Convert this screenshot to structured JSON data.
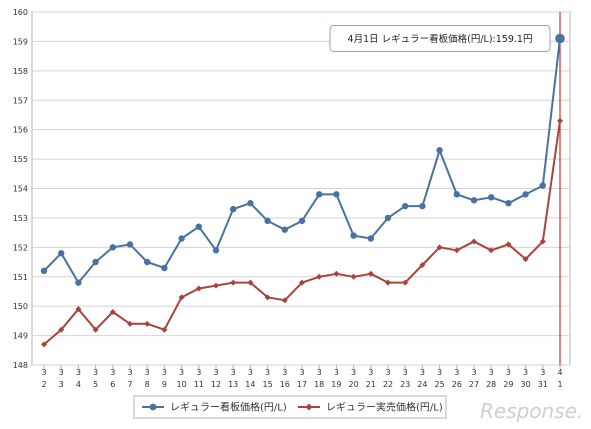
{
  "chart_data": {
    "type": "line",
    "title": "",
    "xlabel": "",
    "ylabel": "",
    "ylim": [
      148,
      160
    ],
    "yticks": [
      148,
      149,
      150,
      151,
      152,
      153,
      154,
      155,
      156,
      157,
      158,
      159,
      160
    ],
    "grid": true,
    "categories": [
      {
        "month": "3",
        "day": "2"
      },
      {
        "month": "3",
        "day": "3"
      },
      {
        "month": "3",
        "day": "4"
      },
      {
        "month": "3",
        "day": "5"
      },
      {
        "month": "3",
        "day": "6"
      },
      {
        "month": "3",
        "day": "7"
      },
      {
        "month": "3",
        "day": "8"
      },
      {
        "month": "3",
        "day": "9"
      },
      {
        "month": "3",
        "day": "10"
      },
      {
        "month": "3",
        "day": "11"
      },
      {
        "month": "3",
        "day": "12"
      },
      {
        "month": "3",
        "day": "13"
      },
      {
        "month": "3",
        "day": "14"
      },
      {
        "month": "3",
        "day": "15"
      },
      {
        "month": "3",
        "day": "16"
      },
      {
        "month": "3",
        "day": "17"
      },
      {
        "month": "3",
        "day": "18"
      },
      {
        "month": "3",
        "day": "19"
      },
      {
        "month": "3",
        "day": "20"
      },
      {
        "month": "3",
        "day": "21"
      },
      {
        "month": "3",
        "day": "22"
      },
      {
        "month": "3",
        "day": "23"
      },
      {
        "month": "3",
        "day": "24"
      },
      {
        "month": "3",
        "day": "25"
      },
      {
        "month": "3",
        "day": "26"
      },
      {
        "month": "3",
        "day": "27"
      },
      {
        "month": "3",
        "day": "28"
      },
      {
        "month": "3",
        "day": "29"
      },
      {
        "month": "3",
        "day": "30"
      },
      {
        "month": "3",
        "day": "31"
      },
      {
        "month": "4",
        "day": "1"
      }
    ],
    "series": [
      {
        "name": "レギュラー看板価格(円/L)",
        "color": "#4a72a0",
        "marker": "circle",
        "values": [
          151.2,
          151.8,
          150.8,
          151.5,
          152.0,
          152.1,
          151.5,
          151.3,
          152.3,
          152.7,
          151.9,
          153.3,
          153.5,
          152.9,
          152.6,
          152.9,
          153.8,
          153.8,
          152.4,
          152.3,
          153.0,
          153.4,
          153.4,
          155.3,
          153.8,
          153.6,
          153.7,
          153.5,
          153.8,
          154.1,
          159.1
        ]
      },
      {
        "name": "レギュラー実売価格(円/L)",
        "color": "#a8443a",
        "marker": "diamond",
        "values": [
          148.7,
          149.2,
          149.9,
          149.2,
          149.8,
          149.4,
          149.4,
          149.2,
          150.3,
          150.6,
          150.7,
          150.8,
          150.8,
          150.3,
          150.2,
          150.8,
          151.0,
          151.1,
          151.0,
          151.1,
          150.8,
          150.8,
          151.4,
          152.0,
          151.9,
          152.2,
          151.9,
          152.1,
          151.6,
          152.2,
          156.3
        ]
      }
    ],
    "highlight_line": {
      "category_index": 30,
      "color": "#cc3333"
    },
    "annotation": {
      "text": "4月1日 レギュラー看板価格(円/L):159.1円",
      "series_index": 0,
      "category_index": 30
    },
    "legend": {
      "position": "bottom"
    }
  },
  "watermark": {
    "text": "Response."
  }
}
